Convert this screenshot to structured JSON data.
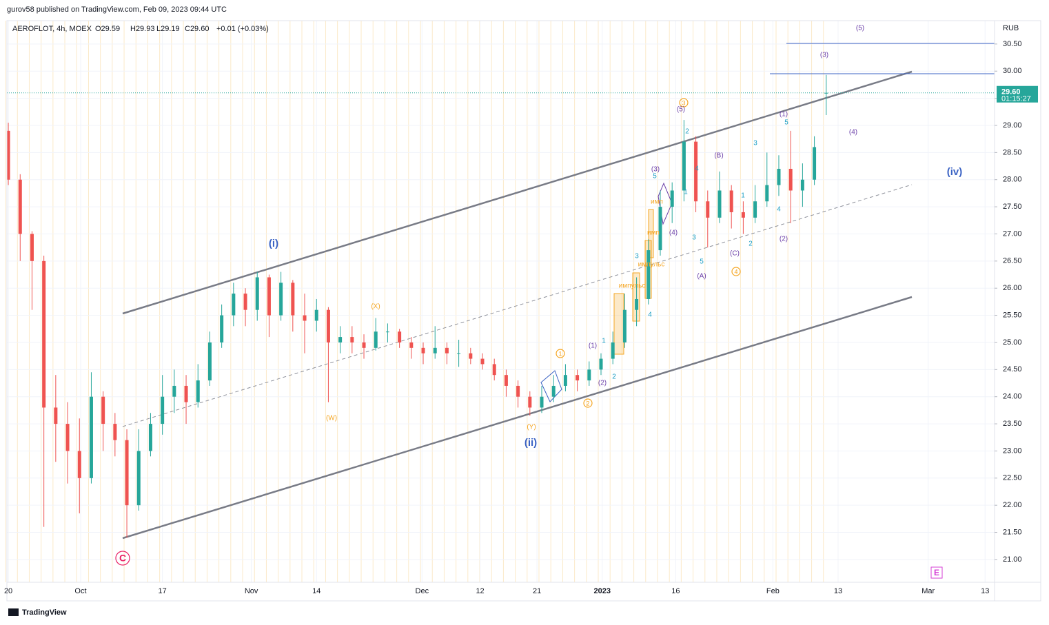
{
  "chart_data": {
    "type": "candlestick",
    "publisher": "gurov58 published on TradingView.com, Feb 09, 2023 09:44 UTC",
    "symbol": "AEROFLOT, 4h, MOEX",
    "ohlc_text": {
      "open": "O29.59",
      "high": "H29.93",
      "low": "L29.19",
      "close": "C29.60",
      "change": "+0.01 (+0.03%)"
    },
    "currency": "RUB",
    "last_price": {
      "value": 29.6,
      "label": "29.60",
      "countdown": "01:15:27"
    },
    "footer": "TradingView",
    "up_color": "#26a69a",
    "down_color": "#ef5350",
    "ohlc": [
      [
        28.9,
        29.05,
        27.9,
        28.0
      ],
      [
        28.0,
        28.1,
        26.5,
        27.0
      ],
      [
        27.0,
        27.05,
        25.6,
        26.5
      ],
      [
        26.5,
        26.6,
        21.6,
        23.8
      ],
      [
        23.8,
        24.4,
        22.8,
        23.5
      ],
      [
        23.5,
        23.9,
        22.4,
        23.0
      ],
      [
        23.0,
        23.6,
        21.85,
        22.5
      ],
      [
        22.5,
        24.45,
        22.4,
        24.0
      ],
      [
        24.0,
        24.1,
        23.0,
        23.5
      ],
      [
        23.5,
        23.7,
        22.9,
        23.2
      ],
      [
        23.2,
        23.4,
        21.4,
        22.0
      ],
      [
        22.0,
        23.4,
        21.9,
        23.0
      ],
      [
        23.0,
        23.7,
        22.9,
        23.5
      ],
      [
        23.5,
        24.4,
        23.3,
        24.0
      ],
      [
        24.0,
        24.5,
        23.7,
        24.2
      ],
      [
        24.2,
        24.4,
        23.5,
        23.9
      ],
      [
        23.9,
        24.6,
        23.8,
        24.3
      ],
      [
        24.3,
        25.2,
        24.2,
        25.0
      ],
      [
        25.0,
        25.7,
        24.9,
        25.5
      ],
      [
        25.5,
        26.1,
        25.3,
        25.9
      ],
      [
        25.9,
        26.0,
        25.3,
        25.6
      ],
      [
        25.6,
        26.3,
        25.4,
        26.2
      ],
      [
        26.2,
        26.25,
        25.1,
        25.5
      ],
      [
        25.5,
        26.3,
        25.4,
        26.1
      ],
      [
        26.1,
        26.15,
        25.2,
        25.5
      ],
      [
        25.5,
        25.9,
        24.8,
        25.4
      ],
      [
        25.4,
        25.8,
        25.2,
        25.6
      ],
      [
        25.6,
        25.65,
        23.9,
        25.0
      ],
      [
        25.0,
        25.3,
        24.8,
        25.1
      ],
      [
        25.1,
        25.3,
        24.8,
        25.0
      ],
      [
        25.0,
        25.15,
        24.7,
        24.9
      ],
      [
        24.9,
        25.45,
        24.85,
        25.2
      ],
      [
        25.2,
        25.35,
        25.0,
        25.2
      ],
      [
        25.2,
        25.25,
        24.9,
        25.0
      ],
      [
        25.0,
        25.1,
        24.7,
        24.9
      ],
      [
        24.9,
        25.0,
        24.6,
        24.8
      ],
      [
        24.8,
        25.3,
        24.7,
        24.9
      ],
      [
        24.9,
        25.0,
        24.6,
        24.8
      ],
      [
        24.8,
        25.05,
        24.55,
        24.8
      ],
      [
        24.8,
        24.9,
        24.6,
        24.7
      ],
      [
        24.7,
        24.8,
        24.5,
        24.6
      ],
      [
        24.6,
        24.7,
        24.3,
        24.4
      ],
      [
        24.4,
        24.5,
        24.0,
        24.2
      ],
      [
        24.2,
        24.3,
        23.8,
        24.0
      ],
      [
        24.0,
        24.1,
        23.65,
        23.8
      ],
      [
        23.8,
        24.2,
        23.7,
        24.0
      ],
      [
        24.0,
        24.4,
        23.9,
        24.2
      ],
      [
        24.2,
        24.6,
        24.1,
        24.4
      ],
      [
        24.4,
        24.5,
        24.1,
        24.3
      ],
      [
        24.3,
        24.65,
        24.2,
        24.5
      ],
      [
        24.5,
        24.8,
        24.4,
        24.7
      ],
      [
        24.7,
        25.2,
        24.6,
        25.0
      ],
      [
        25.0,
        25.9,
        24.9,
        25.6
      ],
      [
        25.6,
        26.2,
        25.3,
        25.8
      ],
      [
        25.8,
        26.9,
        25.7,
        26.7
      ],
      [
        26.7,
        27.8,
        26.6,
        27.5
      ],
      [
        27.5,
        27.95,
        27.2,
        27.8
      ],
      [
        27.8,
        29.1,
        27.6,
        28.7
      ],
      [
        28.7,
        28.8,
        27.4,
        27.6
      ],
      [
        27.6,
        27.8,
        26.75,
        27.3
      ],
      [
        27.3,
        28.15,
        27.2,
        27.8
      ],
      [
        27.8,
        27.9,
        27.1,
        27.4
      ],
      [
        27.4,
        27.6,
        27.0,
        27.3
      ],
      [
        27.3,
        27.9,
        27.2,
        27.6
      ],
      [
        27.6,
        28.5,
        27.5,
        27.9
      ],
      [
        27.9,
        28.45,
        27.7,
        28.2
      ],
      [
        28.2,
        28.9,
        27.2,
        27.8
      ],
      [
        27.8,
        28.3,
        27.5,
        28.0
      ],
      [
        28.0,
        28.8,
        27.9,
        28.6
      ],
      [
        29.59,
        29.93,
        29.19,
        29.6
      ]
    ],
    "xlim": [
      -0.12,
      83.2
    ],
    "xticks": [
      {
        "value": 0,
        "label": "20"
      },
      {
        "value": 6.1,
        "label": "Oct"
      },
      {
        "value": 13.0,
        "label": "17"
      },
      {
        "value": 20.5,
        "label": "Nov"
      },
      {
        "value": 26.0,
        "label": "14"
      },
      {
        "value": 34.9,
        "label": "Dec"
      },
      {
        "value": 39.8,
        "label": "12"
      },
      {
        "value": 44.6,
        "label": "21"
      },
      {
        "value": 50.1,
        "label": "2023"
      },
      {
        "value": 56.3,
        "label": "16"
      },
      {
        "value": 64.5,
        "label": "Feb"
      },
      {
        "value": 70.0,
        "label": "13"
      },
      {
        "value": 77.6,
        "label": "Mar"
      },
      {
        "value": 82.4,
        "label": "13"
      }
    ],
    "ylim": [
      20.58,
      30.93
    ],
    "yticks": [
      {
        "value": 21,
        "label": "21.00"
      },
      {
        "value": 21.5,
        "label": "21.50"
      },
      {
        "value": 22,
        "label": "22.00"
      },
      {
        "value": 22.5,
        "label": "22.50"
      },
      {
        "value": 23,
        "label": "23.00"
      },
      {
        "value": 23.5,
        "label": "23.50"
      },
      {
        "value": 24,
        "label": "24.00"
      },
      {
        "value": 24.5,
        "label": "24.50"
      },
      {
        "value": 25,
        "label": "25.00"
      },
      {
        "value": 25.5,
        "label": "25.50"
      },
      {
        "value": 26,
        "label": "26.00"
      },
      {
        "value": 26.5,
        "label": "26.50"
      },
      {
        "value": 27,
        "label": "27.00"
      },
      {
        "value": 27.5,
        "label": "27.50"
      },
      {
        "value": 28,
        "label": "28.00"
      },
      {
        "value": 28.5,
        "label": "28.50"
      },
      {
        "value": 29,
        "label": "29.00"
      },
      {
        "value": 29.5,
        "label": "29.50"
      },
      {
        "value": 30,
        "label": "30.00"
      },
      {
        "value": 30.5,
        "label": "30.50"
      }
    ],
    "grid": true,
    "annotations": [
      {
        "text": "(i)",
        "color": "#3b63c4"
      },
      {
        "text": "(ii)",
        "color": "#3b63c4"
      },
      {
        "text": "(iv)",
        "color": "#3b63c4"
      },
      {
        "text": "(W)",
        "color": "#f5a623"
      },
      {
        "text": "(X)",
        "color": "#f5a623"
      },
      {
        "text": "(Y)",
        "color": "#f5a623"
      },
      {
        "text": "1",
        "color": "#f5a623",
        "circled": true
      },
      {
        "text": "2",
        "color": "#f5a623",
        "circled": true
      },
      {
        "text": "3",
        "color": "#f5a623",
        "circled": true
      },
      {
        "text": "4",
        "color": "#f5a623",
        "circled": true
      },
      {
        "text": "(5)",
        "color": "#6b3fa8"
      },
      {
        "text": "(3)",
        "color": "#6b3fa8"
      },
      {
        "text": "(4)",
        "color": "#6b3fa8"
      },
      {
        "text": "(1)",
        "color": "#6b3fa8"
      },
      {
        "text": "(2)",
        "color": "#6b3fa8"
      },
      {
        "text": "(B)",
        "color": "#6b3fa8"
      },
      {
        "text": "(A)",
        "color": "#6b3fa8"
      },
      {
        "text": "(C)",
        "color": "#6b3fa8"
      },
      {
        "text": "(5)",
        "color": "#6b3fa8"
      },
      {
        "text": "(3)",
        "color": "#6b3fa8"
      },
      {
        "text": "(4)",
        "color": "#6b3fa8"
      },
      {
        "text": "(1)",
        "color": "#6b3fa8"
      },
      {
        "text": "(2)",
        "color": "#6b3fa8"
      },
      {
        "text": "5",
        "color": "#1e9fc4"
      },
      {
        "text": "3",
        "color": "#1e9fc4"
      },
      {
        "text": "1",
        "color": "#1e9fc4"
      },
      {
        "text": "4",
        "color": "#1e9fc4"
      },
      {
        "text": "2",
        "color": "#1e9fc4"
      },
      {
        "text": "2",
        "color": "#1e9fc4"
      },
      {
        "text": "4",
        "color": "#1e9fc4"
      },
      {
        "text": "1",
        "color": "#1e9fc4"
      },
      {
        "text": "3",
        "color": "#1e9fc4"
      },
      {
        "text": "5",
        "color": "#1e9fc4"
      },
      {
        "text": "5",
        "color": "#1e9fc4"
      },
      {
        "text": "3",
        "color": "#1e9fc4"
      },
      {
        "text": "4",
        "color": "#1e9fc4"
      },
      {
        "text": "1",
        "color": "#1e9fc4"
      },
      {
        "text": "2",
        "color": "#1e9fc4"
      },
      {
        "text": "имп",
        "color": "#f5a623"
      },
      {
        "text": "имп",
        "color": "#f5a623"
      },
      {
        "text": "импульс",
        "color": "#f5a623"
      },
      {
        "text": "импульс",
        "color": "#f5a623"
      },
      {
        "text": "C",
        "color": "#e91e63",
        "circled": true
      },
      {
        "text": "E",
        "color": "#d63fd6",
        "boxed": true
      }
    ]
  }
}
